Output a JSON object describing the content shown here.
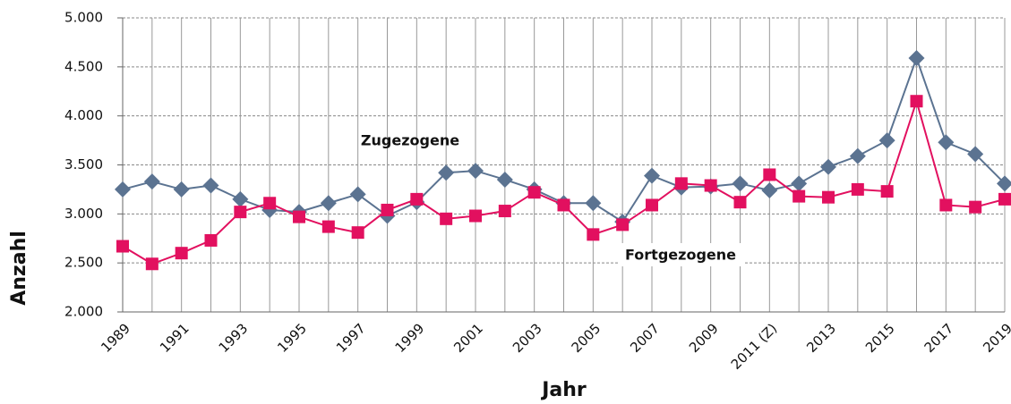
{
  "chart_data": {
    "type": "line",
    "x_label": "Jahr",
    "y_label": "Anzahl",
    "categories": [
      "1989",
      null,
      "1991",
      null,
      "1993",
      null,
      "1995",
      null,
      "1997",
      null,
      "1999",
      null,
      "2001",
      null,
      "2003",
      null,
      "2005",
      null,
      "2007",
      null,
      "2009",
      null,
      "2011 (Z)",
      null,
      "2013",
      null,
      "2015",
      null,
      "2017",
      null,
      "2019"
    ],
    "series": [
      {
        "name": "Zugezogene",
        "color": "#5b7391",
        "marker": "diamond",
        "values": [
          3250,
          3330,
          3250,
          3290,
          3150,
          3040,
          3020,
          3110,
          3200,
          2980,
          3120,
          3420,
          3440,
          3350,
          3250,
          3110,
          3110,
          2920,
          3390,
          3270,
          3280,
          3310,
          3240,
          3310,
          3480,
          3590,
          3750,
          4590,
          3730,
          3610,
          3310
        ]
      },
      {
        "name": "Fortgezogene",
        "color": "#e2105f",
        "marker": "square",
        "values": [
          2670,
          2490,
          2600,
          2730,
          3020,
          3110,
          2970,
          2870,
          2810,
          3040,
          3150,
          2950,
          2980,
          3030,
          3220,
          3090,
          2790,
          2890,
          3090,
          3310,
          3290,
          3120,
          3400,
          3180,
          3170,
          3250,
          3230,
          4150,
          3090,
          3070,
          3150
        ]
      }
    ],
    "ylim": [
      2000,
      5000
    ],
    "yticks": [
      {
        "value": 2000,
        "label": "2.000"
      },
      {
        "value": 2500,
        "label": "2.500"
      },
      {
        "value": 3000,
        "label": "3.000"
      },
      {
        "value": 3500,
        "label": "3.500"
      },
      {
        "value": 4000,
        "label": "4.000"
      },
      {
        "value": 4500,
        "label": "4.500"
      },
      {
        "value": 5000,
        "label": "5.000"
      }
    ],
    "grid": true
  }
}
